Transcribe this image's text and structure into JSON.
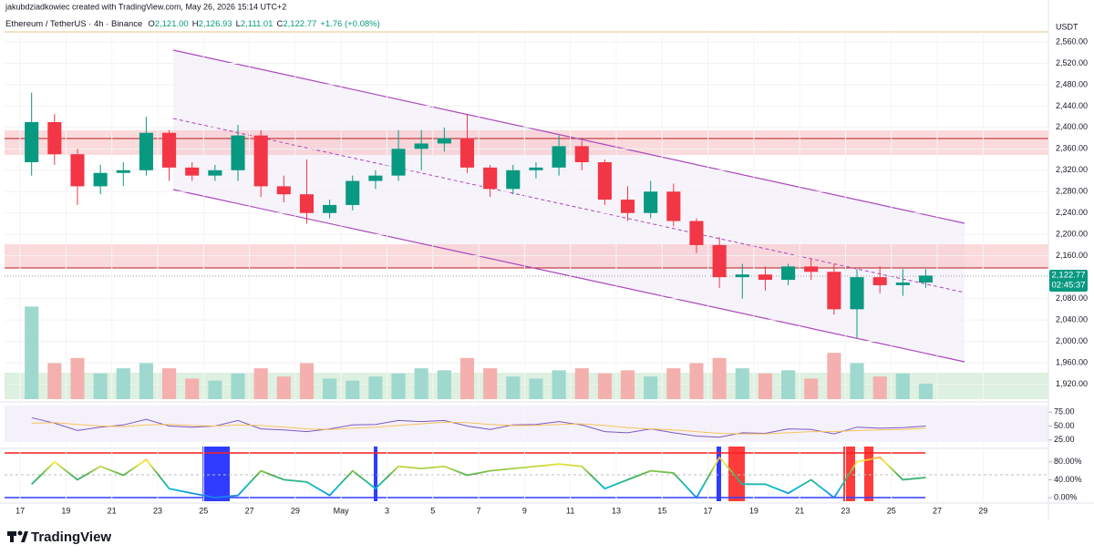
{
  "header": {
    "credit": "jakubdziadkowiec created with TradingView.com, May 26, 2026 15:14 UTC+2",
    "symbol": "Ethereum / TetherUS · 4h · Binance",
    "ohlc": [
      {
        "label": "O",
        "value": "2,121.00"
      },
      {
        "label": "H",
        "value": "2,126.93"
      },
      {
        "label": "L",
        "value": "2,111.01"
      },
      {
        "label": "C",
        "value": "2,122.77"
      }
    ],
    "change": "+1.76 (+0.08%)"
  },
  "currency": "USDT",
  "last_price": {
    "price": "2,122.77",
    "countdown": "02:45:37"
  },
  "brand": "TradingView",
  "chart_data": [
    {
      "type": "candlestick",
      "x": [
        0,
        1,
        2,
        3,
        4,
        5,
        6,
        7,
        8,
        9,
        10,
        11,
        12,
        13,
        14,
        15,
        16,
        17,
        18,
        19,
        20,
        21,
        22,
        23,
        24,
        25,
        26,
        27,
        28,
        29,
        30,
        31,
        32,
        33,
        34,
        35,
        36,
        37,
        38,
        39
      ],
      "open": [
        2335,
        2410,
        2350,
        2290,
        2315,
        2320,
        2390,
        2325,
        2310,
        2320,
        2385,
        2290,
        2275,
        2240,
        2255,
        2300,
        2310,
        2360,
        2370,
        2380,
        2325,
        2285,
        2320,
        2325,
        2365,
        2335,
        2265,
        2240,
        2280,
        2225,
        2180,
        2120,
        2125,
        2115,
        2140,
        2130,
        2060,
        2120,
        2105,
        2110
      ],
      "high": [
        2465,
        2425,
        2360,
        2330,
        2335,
        2420,
        2395,
        2335,
        2330,
        2405,
        2395,
        2310,
        2340,
        2265,
        2310,
        2320,
        2395,
        2395,
        2400,
        2425,
        2330,
        2330,
        2335,
        2385,
        2375,
        2340,
        2290,
        2300,
        2295,
        2230,
        2195,
        2145,
        2140,
        2145,
        2155,
        2145,
        2135,
        2140,
        2135,
        2135
      ],
      "low": [
        2310,
        2330,
        2255,
        2275,
        2290,
        2310,
        2300,
        2300,
        2300,
        2300,
        2270,
        2260,
        2220,
        2230,
        2245,
        2285,
        2300,
        2320,
        2355,
        2315,
        2270,
        2275,
        2305,
        2310,
        2320,
        2255,
        2225,
        2230,
        2215,
        2165,
        2100,
        2080,
        2095,
        2105,
        2115,
        2050,
        2005,
        2090,
        2085,
        2100
      ],
      "close": [
        2410,
        2350,
        2290,
        2315,
        2320,
        2390,
        2325,
        2310,
        2320,
        2385,
        2290,
        2275,
        2240,
        2255,
        2300,
        2310,
        2360,
        2370,
        2380,
        2325,
        2285,
        2320,
        2325,
        2365,
        2335,
        2265,
        2240,
        2280,
        2225,
        2180,
        2120,
        2125,
        2115,
        2140,
        2130,
        2060,
        2120,
        2105,
        2110,
        2123
      ],
      "up_color": "#089981",
      "down_color": "#f23645",
      "xlim": [
        -0.68,
        44.85
      ],
      "xticks": [
        {
          "value": 0,
          "label": "17"
        },
        {
          "value": 2,
          "label": "19"
        },
        {
          "value": 4,
          "label": "21"
        },
        {
          "value": 6,
          "label": "23"
        },
        {
          "value": 8,
          "label": "25"
        },
        {
          "value": 10,
          "label": "27"
        },
        {
          "value": 12,
          "label": "29"
        },
        {
          "value": 14,
          "label": "May"
        },
        {
          "value": 16,
          "label": "3"
        },
        {
          "value": 18,
          "label": "5"
        },
        {
          "value": 20,
          "label": "7"
        },
        {
          "value": 22,
          "label": "9"
        },
        {
          "value": 24,
          "label": "11"
        },
        {
          "value": 26,
          "label": "13"
        },
        {
          "value": 28,
          "label": "15"
        },
        {
          "value": 30,
          "label": "17"
        },
        {
          "value": 32,
          "label": "19"
        },
        {
          "value": 34,
          "label": "21"
        },
        {
          "value": 36,
          "label": "23"
        },
        {
          "value": 38,
          "label": "25"
        },
        {
          "value": 40,
          "label": "27"
        },
        {
          "value": 42,
          "label": "29"
        }
      ],
      "ylim": [
        1888.4,
        2578.75
      ],
      "yticks": [
        {
          "value": 2560,
          "label": "2,560.00"
        },
        {
          "value": 2520,
          "label": "2,520.00"
        },
        {
          "value": 2480,
          "label": "2,480.00"
        },
        {
          "value": 2440,
          "label": "2,440.00"
        },
        {
          "value": 2400,
          "label": "2,400.00"
        },
        {
          "value": 2360,
          "label": "2,360.00"
        },
        {
          "value": 2320,
          "label": "2,320.00"
        },
        {
          "value": 2280,
          "label": "2,280.00"
        },
        {
          "value": 2240,
          "label": "2,240.00"
        },
        {
          "value": 2200,
          "label": "2,200.00"
        },
        {
          "value": 2160,
          "label": "2,160.00"
        },
        {
          "value": 2080,
          "label": "2,080.00"
        },
        {
          "value": 2040,
          "label": "2,040.00"
        },
        {
          "value": 2000,
          "label": "2,000.00"
        },
        {
          "value": 1960,
          "label": "1,960.00"
        },
        {
          "value": 1920,
          "label": "1,920.00"
        }
      ],
      "grid": true
    },
    {
      "type": "bar",
      "values": [
        90,
        35,
        40,
        25,
        30,
        35,
        30,
        20,
        18,
        25,
        30,
        22,
        35,
        20,
        18,
        22,
        25,
        30,
        28,
        40,
        30,
        22,
        20,
        28,
        30,
        25,
        28,
        22,
        30,
        35,
        40,
        30,
        25,
        28,
        20,
        45,
        35,
        22,
        25,
        15
      ],
      "ylim": [
        0,
        100
      ],
      "up_color": "#9fd8cf",
      "down_color": "#f4b0ae"
    },
    {
      "type": "line",
      "series": [
        {
          "color": "#7e57c2",
          "values": [
            65,
            55,
            42,
            48,
            52,
            62,
            50,
            48,
            50,
            60,
            45,
            43,
            40,
            45,
            52,
            53,
            60,
            58,
            60,
            50,
            44,
            52,
            53,
            58,
            52,
            40,
            38,
            45,
            38,
            32,
            30,
            38,
            37,
            45,
            44,
            36,
            48,
            46,
            47,
            50
          ]
        },
        {
          "color": "#f7c35c",
          "values": [
            55,
            56,
            53,
            50,
            49,
            52,
            53,
            51,
            50,
            52,
            51,
            48,
            45,
            44,
            46,
            48,
            51,
            54,
            57,
            56,
            53,
            51,
            51,
            53,
            54,
            51,
            47,
            45,
            43,
            40,
            37,
            36,
            36,
            38,
            40,
            40,
            42,
            43,
            44,
            46
          ]
        }
      ],
      "ylim": [
        10,
        90
      ],
      "yticks": [
        {
          "value": 75,
          "label": "75.00"
        },
        {
          "value": 50,
          "label": "50.00"
        },
        {
          "value": 25,
          "label": "25.00"
        }
      ]
    },
    {
      "type": "line",
      "series": [
        {
          "values": [
            30,
            80,
            40,
            70,
            50,
            85,
            20,
            10,
            0,
            5,
            60,
            40,
            35,
            5,
            60,
            20,
            70,
            65,
            70,
            50,
            60,
            65,
            70,
            75,
            70,
            20,
            40,
            60,
            55,
            0,
            90,
            30,
            30,
            10,
            40,
            0,
            80,
            90,
            40,
            45
          ]
        }
      ],
      "colors": [
        "#2962ff",
        "#00bcd4",
        "#4caf50",
        "#ffeb3b",
        "#f44336"
      ],
      "ylim": [
        -8,
        108
      ],
      "yticks": [
        {
          "value": 80,
          "label": "80.00%"
        },
        {
          "value": 40,
          "label": "40.00%"
        },
        {
          "value": 0,
          "label": "0.00%"
        }
      ]
    }
  ]
}
